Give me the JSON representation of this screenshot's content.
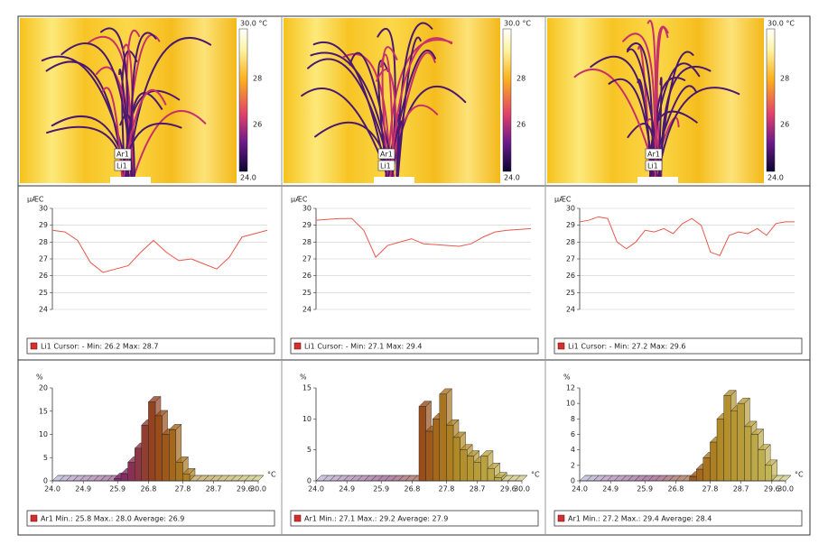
{
  "images": [
    {
      "scale_max": "30.0 °C",
      "scale_ticks": [
        "28",
        "26"
      ],
      "scale_min": "24.0",
      "markers": [
        "Ar1",
        "Li1"
      ]
    },
    {
      "scale_max": "30.0 °C",
      "scale_ticks": [
        "28",
        "26"
      ],
      "scale_min": "24.0",
      "markers": [
        "Ar1",
        "Li1"
      ]
    },
    {
      "scale_max": "30.0 °C",
      "scale_ticks": [
        "28",
        "26"
      ],
      "scale_min": "24.0",
      "markers": [
        "Ar1",
        "Li1"
      ]
    }
  ],
  "chart_data": [
    {
      "type": "line",
      "ylabel": "µÆC",
      "color": "#e8584c",
      "grid": true,
      "ylim": [
        24,
        30
      ],
      "yticks": [
        24,
        25,
        26,
        27,
        28,
        29,
        30
      ],
      "values": [
        28.7,
        28.6,
        28.1,
        26.8,
        26.2,
        26.4,
        26.6,
        27.4,
        28.1,
        27.4,
        26.9,
        27.0,
        26.7,
        26.4,
        27.1,
        28.3,
        28.5,
        28.7
      ],
      "legend_color": "#d23030",
      "legend_text": "Li1 Cursor: - Min: 26.2 Max: 28.7"
    },
    {
      "type": "histogram",
      "ylabel": "%",
      "xlabel": "°C",
      "xlim": [
        24,
        30
      ],
      "ylim": [
        0,
        20
      ],
      "yticks": [
        0,
        5,
        10,
        15,
        20
      ],
      "xticks": [
        {
          "value": 24.0,
          "label": "24.0"
        },
        {
          "value": 24.9,
          "label": "24.9"
        },
        25.9,
        26.8,
        27.8,
        28.7,
        29.6,
        {
          "value": 30.0,
          "label": "30.0"
        }
      ],
      "bins": [
        24,
        24.2,
        24.4,
        24.6,
        24.8,
        25,
        25.2,
        25.4,
        25.6,
        25.8,
        26,
        26.2,
        26.4,
        26.6,
        26.8,
        27,
        27.2,
        27.4,
        27.6,
        27.8,
        28,
        28.2,
        28.4,
        28.6,
        28.8,
        29,
        29.2,
        29.4,
        29.6,
        29.8,
        30
      ],
      "values": [
        0,
        0,
        0,
        0,
        0,
        0,
        0,
        0,
        0,
        0.5,
        1.5,
        4,
        7,
        12,
        17,
        14,
        10,
        11,
        4,
        1.5,
        0,
        0,
        0,
        0,
        0,
        0,
        0,
        0,
        0,
        0
      ],
      "legend_color": "#d23030",
      "legend_text": "Ar1 Min.: 25.8 Max.: 28.0 Average: 26.9"
    },
    {
      "type": "line",
      "ylabel": "µÆC",
      "color": "#e8584c",
      "grid": true,
      "ylim": [
        24,
        30
      ],
      "yticks": [
        24,
        25,
        26,
        27,
        28,
        29,
        30
      ],
      "values": [
        29.3,
        29.35,
        29.4,
        29.4,
        28.7,
        27.1,
        27.8,
        28.0,
        28.2,
        27.9,
        27.85,
        27.8,
        27.75,
        27.9,
        28.3,
        28.6,
        28.7,
        28.75,
        28.8
      ],
      "legend_color": "#d23030",
      "legend_text": "Li1 Cursor: - Min: 27.1 Max: 29.4"
    },
    {
      "type": "histogram",
      "ylabel": "%",
      "xlabel": "°C",
      "xlim": [
        24,
        30
      ],
      "ylim": [
        0,
        15
      ],
      "yticks": [
        0,
        5,
        10,
        15
      ],
      "xticks": [
        {
          "value": 24.0,
          "label": "24.0"
        },
        {
          "value": 24.9,
          "label": "24.9"
        },
        25.9,
        26.8,
        27.8,
        28.7,
        29.6,
        {
          "value": 30.0,
          "label": "30.0"
        }
      ],
      "bins": [
        24,
        24.2,
        24.4,
        24.6,
        24.8,
        25,
        25.2,
        25.4,
        25.6,
        25.8,
        26,
        26.2,
        26.4,
        26.6,
        26.8,
        27,
        27.2,
        27.4,
        27.6,
        27.8,
        28,
        28.2,
        28.4,
        28.6,
        28.8,
        29,
        29.2,
        29.4,
        29.6,
        29.8,
        30
      ],
      "values": [
        0,
        0,
        0,
        0,
        0,
        0,
        0,
        0,
        0,
        0,
        0,
        0,
        0,
        0,
        0,
        12,
        8,
        10,
        14,
        9,
        7,
        5,
        4,
        3,
        4,
        2,
        0.5,
        0,
        0,
        0
      ],
      "legend_color": "#d23030",
      "legend_text": "Ar1 Min.: 27.1 Max.: 29.2 Average: 27.9"
    },
    {
      "type": "line",
      "ylabel": "µÆC",
      "color": "#e8584c",
      "grid": true,
      "ylim": [
        24,
        30
      ],
      "yticks": [
        24,
        25,
        26,
        27,
        28,
        29,
        30
      ],
      "values": [
        29.2,
        29.3,
        29.5,
        29.4,
        28.0,
        27.6,
        28.0,
        28.7,
        28.6,
        28.8,
        28.5,
        29.1,
        29.4,
        29.0,
        27.4,
        27.2,
        28.4,
        28.6,
        28.5,
        28.8,
        28.4,
        29.1,
        29.2,
        29.2
      ],
      "legend_color": "#d23030",
      "legend_text": "Li1 Cursor: - Min: 27.2 Max: 29.6"
    },
    {
      "type": "histogram",
      "ylabel": "%",
      "xlabel": "°C",
      "xlim": [
        24,
        30
      ],
      "ylim": [
        0,
        12
      ],
      "yticks": [
        0,
        2,
        4,
        6,
        8,
        10,
        12
      ],
      "xticks": [
        {
          "value": 24.0,
          "label": "24.0"
        },
        {
          "value": 24.9,
          "label": "24.9"
        },
        25.9,
        26.8,
        27.8,
        28.7,
        29.6,
        {
          "value": 30.0,
          "label": "30.0"
        }
      ],
      "bins": [
        24,
        24.2,
        24.4,
        24.6,
        24.8,
        25,
        25.2,
        25.4,
        25.6,
        25.8,
        26,
        26.2,
        26.4,
        26.6,
        26.8,
        27,
        27.2,
        27.4,
        27.6,
        27.8,
        28,
        28.2,
        28.4,
        28.6,
        28.8,
        29,
        29.2,
        29.4,
        29.6,
        29.8,
        30
      ],
      "values": [
        0,
        0,
        0,
        0,
        0,
        0,
        0,
        0,
        0,
        0,
        0,
        0,
        0,
        0,
        0,
        0,
        0.5,
        1.5,
        3,
        5,
        8,
        11,
        9,
        10,
        7,
        6,
        4,
        2,
        0,
        0
      ],
      "legend_color": "#d23030",
      "legend_text": "Ar1 Min.: 27.2 Max.: 29.4 Average: 28.4"
    }
  ]
}
